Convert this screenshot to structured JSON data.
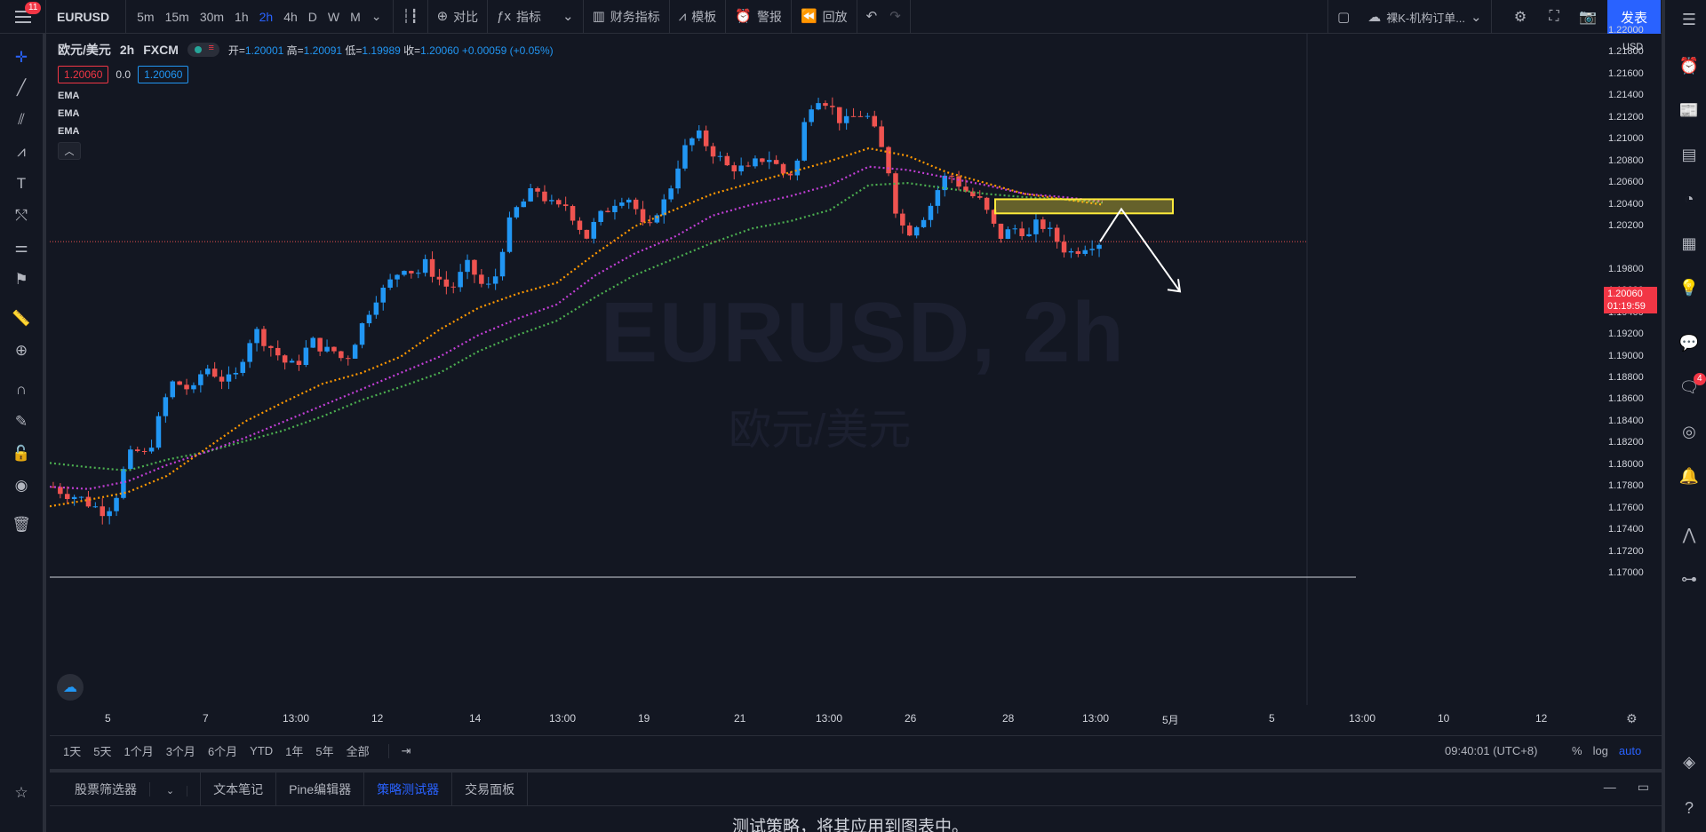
{
  "topbar": {
    "menu_badge": "11",
    "symbol": "EURUSD",
    "intervals": [
      "5m",
      "15m",
      "30m",
      "1h",
      "2h",
      "4h",
      "D",
      "W",
      "M"
    ],
    "active_interval": "2h",
    "compare_label": "对比",
    "indicators_label": "指标",
    "financials_label": "财务指标",
    "templates_label": "模板",
    "alert_label": "警报",
    "replay_label": "回放",
    "layout_name": "裸K-机构订单...",
    "publish_label": "发表"
  },
  "legend": {
    "symbol_name": "欧元/美元",
    "interval": "2h",
    "exchange": "FXCM",
    "open_label": "开=",
    "open": "1.20001",
    "high_label": "高=",
    "high": "1.20091",
    "low_label": "低=",
    "low": "1.19989",
    "close_label": "收=",
    "close": "1.20060",
    "change": "+0.00059 (+0.05%)",
    "bid": "1.20060",
    "spread": "0.0",
    "ask": "1.20060",
    "indicators": [
      "EMA",
      "EMA",
      "EMA"
    ]
  },
  "watermark": {
    "symbol": "EURUSD, 2h",
    "name": "欧元/美元"
  },
  "price_axis": {
    "currency": "USD",
    "current_price": "1.20060",
    "countdown": "01:19:59",
    "ticks": [
      "1.22000",
      "1.21800",
      "1.21600",
      "1.21400",
      "1.21200",
      "1.21000",
      "1.20800",
      "1.20600",
      "1.20400",
      "1.20200",
      "1.19800",
      "1.19600",
      "1.19400",
      "1.19200",
      "1.19000",
      "1.18800",
      "1.18600",
      "1.18400",
      "1.18200",
      "1.18000",
      "1.17800",
      "1.17600",
      "1.17400",
      "1.17200",
      "1.17000"
    ]
  },
  "time_axis": {
    "ticks": [
      "5",
      "7",
      "13:00",
      "12",
      "14",
      "13:00",
      "19",
      "21",
      "13:00",
      "26",
      "28",
      "13:00",
      "5月",
      "5",
      "13:00",
      "10",
      "12"
    ]
  },
  "rangebar": {
    "ranges": [
      "1天",
      "5天",
      "1个月",
      "3个月",
      "6个月",
      "YTD",
      "1年",
      "5年",
      "全部"
    ],
    "clock": "09:40:01 (UTC+8)",
    "percent": "%",
    "log": "log",
    "auto": "auto"
  },
  "panel": {
    "tabs": [
      "股票筛选器",
      "文本笔记",
      "Pine编辑器",
      "策略测试器",
      "交易面板"
    ],
    "active_tab": "策略测试器",
    "message": "测试策略，将其应用到图表中。"
  },
  "right_sidebar": {
    "notification_badge": "4"
  },
  "colors": {
    "background": "#131722",
    "up": "#2196f3",
    "down": "#ef5350",
    "ema_fast": "#ff9800",
    "ema_mid": "#c23fd6",
    "ema_slow": "#4caf50",
    "zone": "#ffeb3b",
    "accent": "#2962ff"
  },
  "chart_data": {
    "type": "candlestick",
    "symbol": "EURUSD",
    "interval": "2h",
    "ylim": [
      1.17,
      1.22
    ],
    "close_path": [
      1.178,
      1.1775,
      1.1772,
      1.1768,
      1.1762,
      1.1758,
      1.1765,
      1.1795,
      1.1815,
      1.1808,
      1.1825,
      1.1858,
      1.1878,
      1.1872,
      1.1868,
      1.1892,
      1.1885,
      1.1878,
      1.1878,
      1.1905,
      1.1925,
      1.1915,
      1.1905,
      1.1895,
      1.189,
      1.1905,
      1.1915,
      1.1905,
      1.1905,
      1.1895,
      1.1915,
      1.1935,
      1.1955,
      1.1962,
      1.1975,
      1.1985,
      1.1975,
      1.1985,
      1.1975,
      1.1965,
      1.1965,
      1.1985,
      1.1975,
      1.196,
      1.1975,
      1.2015,
      1.2035,
      1.2045,
      1.2055,
      1.2045,
      1.2035,
      1.204,
      1.2025,
      1.201,
      1.2025,
      1.2035,
      1.2045,
      1.205,
      1.2035,
      1.201,
      1.2035,
      1.2045,
      1.2075,
      1.2095,
      1.2105,
      1.2095,
      1.2085,
      1.2075,
      1.2075,
      1.207,
      1.208,
      1.2085,
      1.2075,
      1.2065,
      1.208,
      1.213,
      1.214,
      1.2135,
      1.212,
      1.2115,
      1.2125,
      1.212,
      1.21,
      1.2075,
      1.2025,
      1.2015,
      1.2025,
      1.2035,
      1.2055,
      1.207,
      1.206,
      1.205,
      1.2045,
      1.203,
      1.201,
      1.2015,
      1.202,
      1.201,
      1.2025,
      1.2015,
      1.2005,
      1.1995,
      1.2,
      1.2005,
      1.2006
    ],
    "ema_fast": [
      1.1762,
      1.1768,
      1.1775,
      1.179,
      1.1815,
      1.184,
      1.1858,
      1.1875,
      1.1885,
      1.19,
      1.1925,
      1.1945,
      1.1958,
      1.1968,
      1.1995,
      1.202,
      1.2035,
      1.205,
      1.206,
      1.207,
      1.208,
      1.2092,
      1.2085,
      1.207,
      1.206,
      1.205,
      1.2045,
      1.204
    ],
    "ema_mid": [
      1.178,
      1.1778,
      1.1785,
      1.18,
      1.1812,
      1.1825,
      1.184,
      1.1855,
      1.187,
      1.1885,
      1.19,
      1.192,
      1.1935,
      1.1948,
      1.1975,
      1.1995,
      1.201,
      1.203,
      1.204,
      1.2048,
      1.2058,
      1.2075,
      1.2072,
      1.2065,
      1.2058,
      1.205,
      1.2047,
      1.2043
    ],
    "ema_slow": [
      1.1802,
      1.1798,
      1.1795,
      1.1805,
      1.1812,
      1.1822,
      1.1832,
      1.1845,
      1.186,
      1.1872,
      1.1885,
      1.1905,
      1.192,
      1.1933,
      1.1955,
      1.1975,
      1.199,
      1.2005,
      1.2018,
      1.2025,
      1.2035,
      1.2058,
      1.206,
      1.2055,
      1.205,
      1.2047,
      1.2045,
      1.2042
    ],
    "annotations": [
      {
        "type": "rectangle",
        "price_top": 1.2045,
        "price_bottom": 1.2032
      },
      {
        "type": "arrow",
        "direction": "down",
        "target_price": 1.196
      }
    ]
  }
}
